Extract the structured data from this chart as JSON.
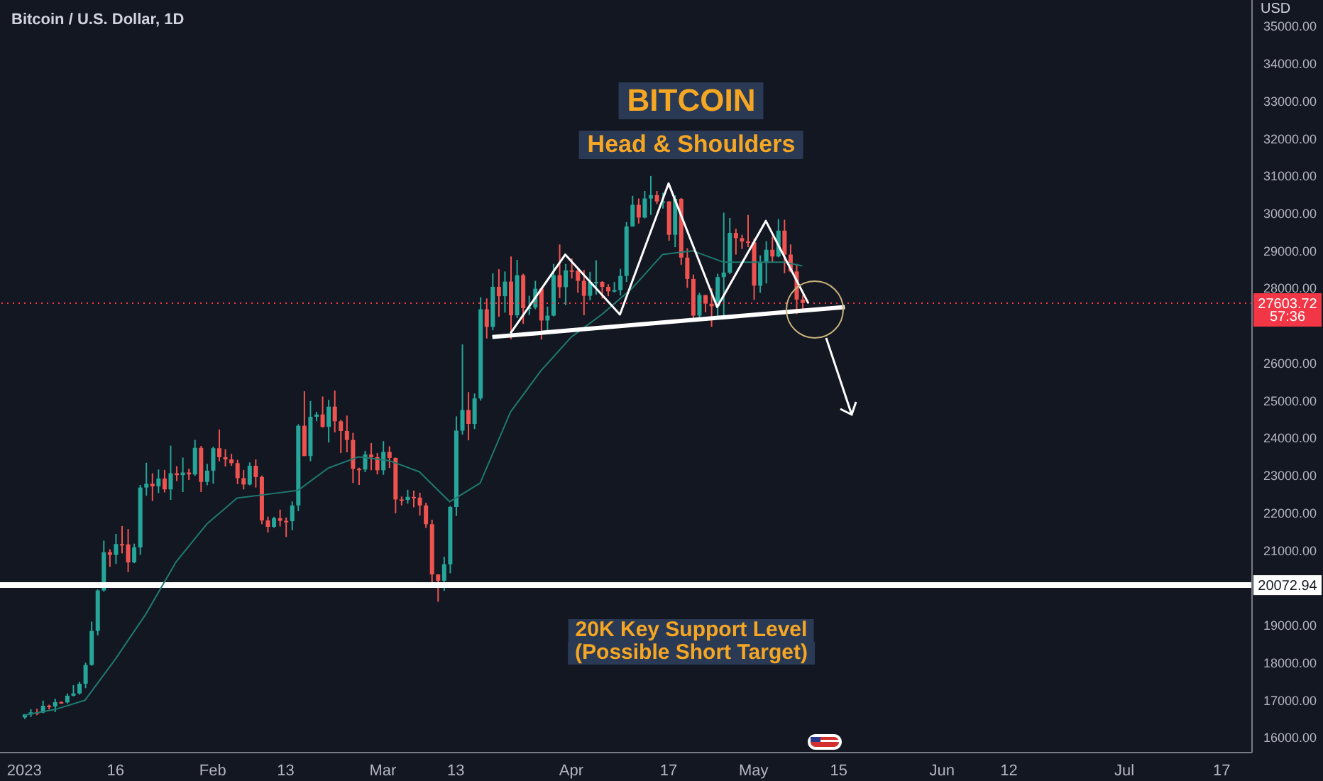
{
  "chart_data": {
    "type": "candlestick",
    "title": "Bitcoin / U.S. Dollar, 1D",
    "ylabel": "USD",
    "x": [
      "2023-01-01",
      "2023-01-02",
      "2023-01-03",
      "2023-01-04",
      "2023-01-05",
      "2023-01-06",
      "2023-01-07",
      "2023-01-08",
      "2023-01-09",
      "2023-01-10",
      "2023-01-11",
      "2023-01-12",
      "2023-01-13",
      "2023-01-14",
      "2023-01-15",
      "2023-01-16",
      "2023-01-17",
      "2023-01-18",
      "2023-01-19",
      "2023-01-20",
      "2023-01-21",
      "2023-01-22",
      "2023-01-23",
      "2023-01-24",
      "2023-01-25",
      "2023-01-26",
      "2023-01-27",
      "2023-01-28",
      "2023-01-29",
      "2023-01-30",
      "2023-01-31",
      "2023-02-01",
      "2023-02-02",
      "2023-02-03",
      "2023-02-04",
      "2023-02-05",
      "2023-02-06",
      "2023-02-07",
      "2023-02-08",
      "2023-02-09",
      "2023-02-10",
      "2023-02-11",
      "2023-02-12",
      "2023-02-13",
      "2023-02-14",
      "2023-02-15",
      "2023-02-16",
      "2023-02-17",
      "2023-02-18",
      "2023-02-19",
      "2023-02-20",
      "2023-02-21",
      "2023-02-22",
      "2023-02-23",
      "2023-02-24",
      "2023-02-25",
      "2023-02-26",
      "2023-02-27",
      "2023-02-28",
      "2023-03-01",
      "2023-03-02",
      "2023-03-03",
      "2023-03-04",
      "2023-03-05",
      "2023-03-06",
      "2023-03-07",
      "2023-03-08",
      "2023-03-09",
      "2023-03-10",
      "2023-03-11",
      "2023-03-12",
      "2023-03-13",
      "2023-03-14",
      "2023-03-15",
      "2023-03-16",
      "2023-03-17",
      "2023-03-18",
      "2023-03-19",
      "2023-03-20",
      "2023-03-21",
      "2023-03-22",
      "2023-03-23",
      "2023-03-24",
      "2023-03-25",
      "2023-03-26",
      "2023-03-27",
      "2023-03-28",
      "2023-03-29",
      "2023-03-30",
      "2023-03-31",
      "2023-04-01",
      "2023-04-02",
      "2023-04-03",
      "2023-04-04",
      "2023-04-05",
      "2023-04-06",
      "2023-04-07",
      "2023-04-08",
      "2023-04-09",
      "2023-04-10",
      "2023-04-11",
      "2023-04-12",
      "2023-04-13",
      "2023-04-14",
      "2023-04-15",
      "2023-04-16",
      "2023-04-17",
      "2023-04-18",
      "2023-04-19",
      "2023-04-20",
      "2023-04-21",
      "2023-04-22",
      "2023-04-23",
      "2023-04-24",
      "2023-04-25",
      "2023-04-26",
      "2023-04-27",
      "2023-04-28",
      "2023-04-29",
      "2023-04-30",
      "2023-05-01",
      "2023-05-02",
      "2023-05-03",
      "2023-05-04",
      "2023-05-05",
      "2023-05-06",
      "2023-05-07",
      "2023-05-08",
      "2023-05-09"
    ],
    "ohlc": [
      [
        16540,
        16630,
        16500,
        16620
      ],
      [
        16620,
        16760,
        16550,
        16675
      ],
      [
        16675,
        16770,
        16600,
        16670
      ],
      [
        16670,
        16990,
        16650,
        16850
      ],
      [
        16850,
        16880,
        16750,
        16830
      ],
      [
        16830,
        17040,
        16680,
        16950
      ],
      [
        16950,
        16970,
        16900,
        16940
      ],
      [
        16940,
        17180,
        16910,
        17120
      ],
      [
        17120,
        17400,
        17100,
        17180
      ],
      [
        17180,
        17490,
        17150,
        17440
      ],
      [
        17440,
        18000,
        17320,
        17940
      ],
      [
        17940,
        19100,
        17920,
        18850
      ],
      [
        18850,
        19960,
        18730,
        19930
      ],
      [
        19930,
        21260,
        19900,
        20950
      ],
      [
        20950,
        21030,
        20560,
        20880
      ],
      [
        20880,
        21440,
        20640,
        21170
      ],
      [
        21170,
        21650,
        20920,
        21160
      ],
      [
        21160,
        21570,
        20420,
        20680
      ],
      [
        20680,
        21180,
        20660,
        21080
      ],
      [
        21080,
        22750,
        20880,
        22680
      ],
      [
        22680,
        23340,
        22460,
        22780
      ],
      [
        22780,
        23060,
        22320,
        22710
      ],
      [
        22710,
        23160,
        22530,
        22920
      ],
      [
        22920,
        23150,
        22550,
        22630
      ],
      [
        22630,
        23800,
        22350,
        23060
      ],
      [
        23060,
        23250,
        22850,
        23010
      ],
      [
        23010,
        23480,
        22560,
        23080
      ],
      [
        23080,
        23180,
        22880,
        23030
      ],
      [
        23030,
        23950,
        22990,
        23740
      ],
      [
        23740,
        23790,
        22560,
        22830
      ],
      [
        22830,
        23310,
        22740,
        23130
      ],
      [
        23130,
        23770,
        22780,
        23730
      ],
      [
        23730,
        24230,
        23380,
        23490
      ],
      [
        23490,
        23700,
        23240,
        23430
      ],
      [
        23430,
        23580,
        23260,
        23330
      ],
      [
        23330,
        23420,
        22770,
        22930
      ],
      [
        22930,
        23150,
        22630,
        22760
      ],
      [
        22760,
        23350,
        22740,
        23260
      ],
      [
        23260,
        23430,
        22680,
        22960
      ],
      [
        22960,
        23000,
        21700,
        21800
      ],
      [
        21800,
        21900,
        21480,
        21630
      ],
      [
        21630,
        21900,
        21600,
        21860
      ],
      [
        21860,
        22090,
        21640,
        21790
      ],
      [
        21790,
        21880,
        21360,
        21780
      ],
      [
        21780,
        22310,
        21540,
        22200
      ],
      [
        22200,
        24370,
        22050,
        24330
      ],
      [
        24330,
        25250,
        23520,
        23520
      ],
      [
        23520,
        24990,
        23380,
        24570
      ],
      [
        24570,
        24700,
        24450,
        24630
      ],
      [
        24630,
        25110,
        24280,
        24300
      ],
      [
        24300,
        25020,
        23880,
        24840
      ],
      [
        24840,
        25270,
        24150,
        24450
      ],
      [
        24450,
        24490,
        23600,
        24190
      ],
      [
        24190,
        24600,
        23620,
        23950
      ],
      [
        23950,
        24140,
        22800,
        23180
      ],
      [
        23180,
        23210,
        22750,
        23160
      ],
      [
        23160,
        23660,
        23090,
        23560
      ],
      [
        23560,
        23870,
        23140,
        23490
      ],
      [
        23490,
        23600,
        23030,
        23140
      ],
      [
        23140,
        23920,
        23020,
        23630
      ],
      [
        23630,
        23780,
        23200,
        23470
      ],
      [
        23470,
        23480,
        21990,
        22360
      ],
      [
        22360,
        22440,
        22200,
        22350
      ],
      [
        22350,
        22620,
        22250,
        22430
      ],
      [
        22430,
        22600,
        22150,
        22410
      ],
      [
        22410,
        22540,
        21930,
        22200
      ],
      [
        22200,
        22270,
        21600,
        21700
      ],
      [
        21700,
        21820,
        20060,
        20360
      ],
      [
        20360,
        20360,
        19630,
        20190
      ],
      [
        20190,
        20830,
        19920,
        20630
      ],
      [
        20630,
        22190,
        20390,
        22160
      ],
      [
        22160,
        24580,
        21920,
        24200
      ],
      [
        24200,
        26500,
        24090,
        24750
      ],
      [
        24750,
        25230,
        23940,
        24380
      ],
      [
        24380,
        25190,
        24240,
        25060
      ],
      [
        25060,
        27760,
        25000,
        27440
      ],
      [
        27440,
        27730,
        26660,
        26970
      ],
      [
        26970,
        28400,
        26880,
        28040
      ],
      [
        28040,
        28510,
        27240,
        27790
      ],
      [
        27790,
        28450,
        27350,
        28180
      ],
      [
        28180,
        28850,
        26640,
        27280
      ],
      [
        27280,
        28760,
        27210,
        28350
      ],
      [
        28350,
        28390,
        27050,
        27470
      ],
      [
        27470,
        27800,
        27280,
        27490
      ],
      [
        27490,
        28200,
        27440,
        27990
      ],
      [
        27990,
        28030,
        26630,
        27140
      ],
      [
        27140,
        27510,
        26800,
        27270
      ],
      [
        27270,
        28650,
        27250,
        28350
      ],
      [
        28350,
        29170,
        27740,
        28030
      ],
      [
        28030,
        28650,
        27550,
        28480
      ],
      [
        28480,
        28800,
        28260,
        28470
      ],
      [
        28470,
        28530,
        27880,
        28200
      ],
      [
        28200,
        28490,
        27280,
        27800
      ],
      [
        27800,
        28440,
        27680,
        28170
      ],
      [
        28170,
        28750,
        27830,
        28170
      ],
      [
        28170,
        28190,
        27730,
        28040
      ],
      [
        28040,
        28110,
        27790,
        27920
      ],
      [
        27920,
        28170,
        27890,
        27950
      ],
      [
        27950,
        28520,
        27810,
        28330
      ],
      [
        28330,
        29770,
        28170,
        29650
      ],
      [
        29650,
        30470,
        29650,
        30230
      ],
      [
        30230,
        30400,
        29730,
        29890
      ],
      [
        29890,
        30600,
        29870,
        30400
      ],
      [
        30400,
        31000,
        29960,
        30490
      ],
      [
        30490,
        30600,
        30250,
        30320
      ],
      [
        30320,
        30550,
        30130,
        30320
      ],
      [
        30320,
        30330,
        29270,
        29430
      ],
      [
        29430,
        30480,
        29100,
        30390
      ],
      [
        30390,
        30410,
        28630,
        28820
      ],
      [
        28820,
        29070,
        28010,
        28250
      ],
      [
        28250,
        28370,
        27130,
        27270
      ],
      [
        27270,
        27880,
        27140,
        27820
      ],
      [
        27820,
        27820,
        27360,
        27590
      ],
      [
        27590,
        28000,
        26970,
        27520
      ],
      [
        27520,
        28390,
        27220,
        28300
      ],
      [
        28300,
        30020,
        27250,
        28420
      ],
      [
        28420,
        29880,
        28380,
        29480
      ],
      [
        29480,
        29590,
        28900,
        29340
      ],
      [
        29340,
        29430,
        29050,
        29250
      ],
      [
        29250,
        29960,
        29100,
        29230
      ],
      [
        29230,
        29330,
        27690,
        28070
      ],
      [
        28070,
        28880,
        27880,
        28680
      ],
      [
        28680,
        29260,
        28130,
        29030
      ],
      [
        29030,
        29380,
        28690,
        28850
      ],
      [
        28850,
        29850,
        28830,
        29540
      ],
      [
        29540,
        29830,
        28400,
        28900
      ],
      [
        28900,
        29170,
        28430,
        28450
      ],
      [
        28450,
        28650,
        27310,
        27700
      ],
      [
        27700,
        27820,
        27400,
        27604
      ]
    ],
    "colors": [
      "#26a69a",
      "#26a69a",
      "#ef5350",
      "#26a69a",
      "#ef5350",
      "#26a69a",
      "#ef5350",
      "#26a69a",
      "#26a69a",
      "#26a69a",
      "#26a69a",
      "#26a69a",
      "#26a69a",
      "#26a69a",
      "#ef5350",
      "#26a69a",
      "#ef5350",
      "#ef5350",
      "#26a69a",
      "#26a69a",
      "#26a69a",
      "#ef5350",
      "#26a69a",
      "#ef5350",
      "#26a69a",
      "#ef5350",
      "#26a69a",
      "#ef5350",
      "#26a69a",
      "#ef5350",
      "#26a69a",
      "#26a69a",
      "#ef5350",
      "#ef5350",
      "#ef5350",
      "#ef5350",
      "#ef5350",
      "#26a69a",
      "#ef5350",
      "#ef5350",
      "#ef5350",
      "#26a69a",
      "#ef5350",
      "#ef5350",
      "#26a69a",
      "#26a69a",
      "#ef5350",
      "#26a69a",
      "#26a69a",
      "#ef5350",
      "#26a69a",
      "#ef5350",
      "#ef5350",
      "#ef5350",
      "#ef5350",
      "#ef5350",
      "#26a69a",
      "#ef5350",
      "#ef5350",
      "#26a69a",
      "#ef5350",
      "#ef5350",
      "#ef5350",
      "#26a69a",
      "#ef5350",
      "#ef5350",
      "#ef5350",
      "#ef5350",
      "#ef5350",
      "#26a69a",
      "#26a69a",
      "#26a69a",
      "#26a69a",
      "#ef5350",
      "#26a69a",
      "#26a69a",
      "#ef5350",
      "#26a69a",
      "#ef5350",
      "#26a69a",
      "#ef5350",
      "#26a69a",
      "#ef5350",
      "#26a69a",
      "#26a69a",
      "#ef5350",
      "#26a69a",
      "#26a69a",
      "#ef5350",
      "#26a69a",
      "#ef5350",
      "#ef5350",
      "#ef5350",
      "#26a69a",
      "#26a69a",
      "#ef5350",
      "#ef5350",
      "#26a69a",
      "#26a69a",
      "#26a69a",
      "#26a69a",
      "#ef5350",
      "#26a69a",
      "#26a69a",
      "#ef5350",
      "#26a69a",
      "#ef5350",
      "#26a69a",
      "#ef5350",
      "#ef5350",
      "#ef5350",
      "#26a69a",
      "#ef5350",
      "#ef5350",
      "#26a69a",
      "#26a69a",
      "#26a69a",
      "#ef5350",
      "#ef5350",
      "#ef5350",
      "#ef5350",
      "#26a69a",
      "#26a69a",
      "#ef5350",
      "#26a69a",
      "#ef5350",
      "#ef5350",
      "#ef5350",
      "#ef5350"
    ],
    "series": [
      {
        "type": "line",
        "color": "#1f7a70",
        "x": [
          "2023-01-01",
          "2023-01-06",
          "2023-01-11",
          "2023-01-16",
          "2023-01-21",
          "2023-01-26",
          "2023-01-31",
          "2023-02-05",
          "2023-02-10",
          "2023-02-15",
          "2023-02-20",
          "2023-02-25",
          "2023-03-02",
          "2023-03-07",
          "2023-03-12",
          "2023-03-17",
          "2023-03-22",
          "2023-03-27",
          "2023-04-01",
          "2023-04-06",
          "2023-04-11",
          "2023-04-16",
          "2023-04-21",
          "2023-04-26",
          "2023-05-01",
          "2023-05-06",
          "2023-05-09"
        ],
        "values": [
          16600,
          16750,
          17000,
          18100,
          19300,
          20700,
          21700,
          22400,
          22500,
          22600,
          23200,
          23500,
          23400,
          23100,
          22300,
          22800,
          24700,
          25800,
          26700,
          27300,
          28000,
          28900,
          29000,
          28700,
          28700,
          28700,
          28600
        ]
      },
      {
        "type": "line",
        "color": "#ffffff",
        "x": [
          "2023-03-19",
          "2023-05-16"
        ],
        "values": [
          26700,
          27500
        ]
      },
      {
        "type": "line",
        "color": "#ffffff",
        "x": [
          "2023-03-22",
          "2023-03-31",
          "2023-04-09",
          "2023-04-17",
          "2023-04-25",
          "2023-05-03",
          "2023-05-10"
        ],
        "values": [
          26800,
          28900,
          27300,
          30800,
          27500,
          29800,
          27600
        ]
      }
    ],
    "xlim": [
      "2022-12-28",
      "2023-07-22"
    ],
    "xticks": [
      {
        "value": "2023-01-01",
        "label": "2023"
      },
      {
        "value": "2023-01-16",
        "label": "16"
      },
      {
        "value": "2023-02-01",
        "label": "Feb"
      },
      {
        "value": "2023-02-13",
        "label": "13"
      },
      {
        "value": "2023-03-01",
        "label": "Mar"
      },
      {
        "value": "2023-03-13",
        "label": "13"
      },
      {
        "value": "2023-04-01",
        "label": "Apr"
      },
      {
        "value": "2023-04-17",
        "label": "17"
      },
      {
        "value": "2023-05-01",
        "label": "May"
      },
      {
        "value": "2023-05-15",
        "label": "15"
      },
      {
        "value": "2023-06-01",
        "label": "Jun"
      },
      {
        "value": "2023-06-12",
        "label": "12"
      },
      {
        "value": "2023-07-01",
        "label": "Jul"
      },
      {
        "value": "2023-07-17",
        "label": "17"
      }
    ],
    "ylim": [
      15600,
      35700
    ],
    "yticks": [
      {
        "value": 16000,
        "label": "16000.00"
      },
      {
        "value": 17000,
        "label": "17000.00"
      },
      {
        "value": 18000,
        "label": "18000.00"
      },
      {
        "value": 19000,
        "label": "19000.00"
      },
      {
        "value": 21000,
        "label": "21000.00"
      },
      {
        "value": 22000,
        "label": "22000.00"
      },
      {
        "value": 23000,
        "label": "23000.00"
      },
      {
        "value": 24000,
        "label": "24000.00"
      },
      {
        "value": 25000,
        "label": "25000.00"
      },
      {
        "value": 26000,
        "label": "26000.00"
      },
      {
        "value": 28000,
        "label": "28000.00"
      },
      {
        "value": 29000,
        "label": "29000.00"
      },
      {
        "value": 30000,
        "label": "30000.00"
      },
      {
        "value": 31000,
        "label": "31000.00"
      },
      {
        "value": 32000,
        "label": "32000.00"
      },
      {
        "value": 33000,
        "label": "33000.00"
      },
      {
        "value": 34000,
        "label": "34000.00"
      },
      {
        "value": 35000,
        "label": "35000.00"
      }
    ],
    "ref_lines": [
      {
        "axis": "y",
        "value": 20072.94,
        "label": "20072.94",
        "color": "#ffffff",
        "line_style": "solid"
      },
      {
        "axis": "y",
        "value": 27603.72,
        "label": "27603.72",
        "color": "#f23645",
        "line_style": "dotted"
      }
    ],
    "annotations": [
      "BITCOIN",
      "Head & Shoulders",
      "20K Key Support Level",
      "(Possible Short Target)",
      "57:36"
    ]
  }
}
